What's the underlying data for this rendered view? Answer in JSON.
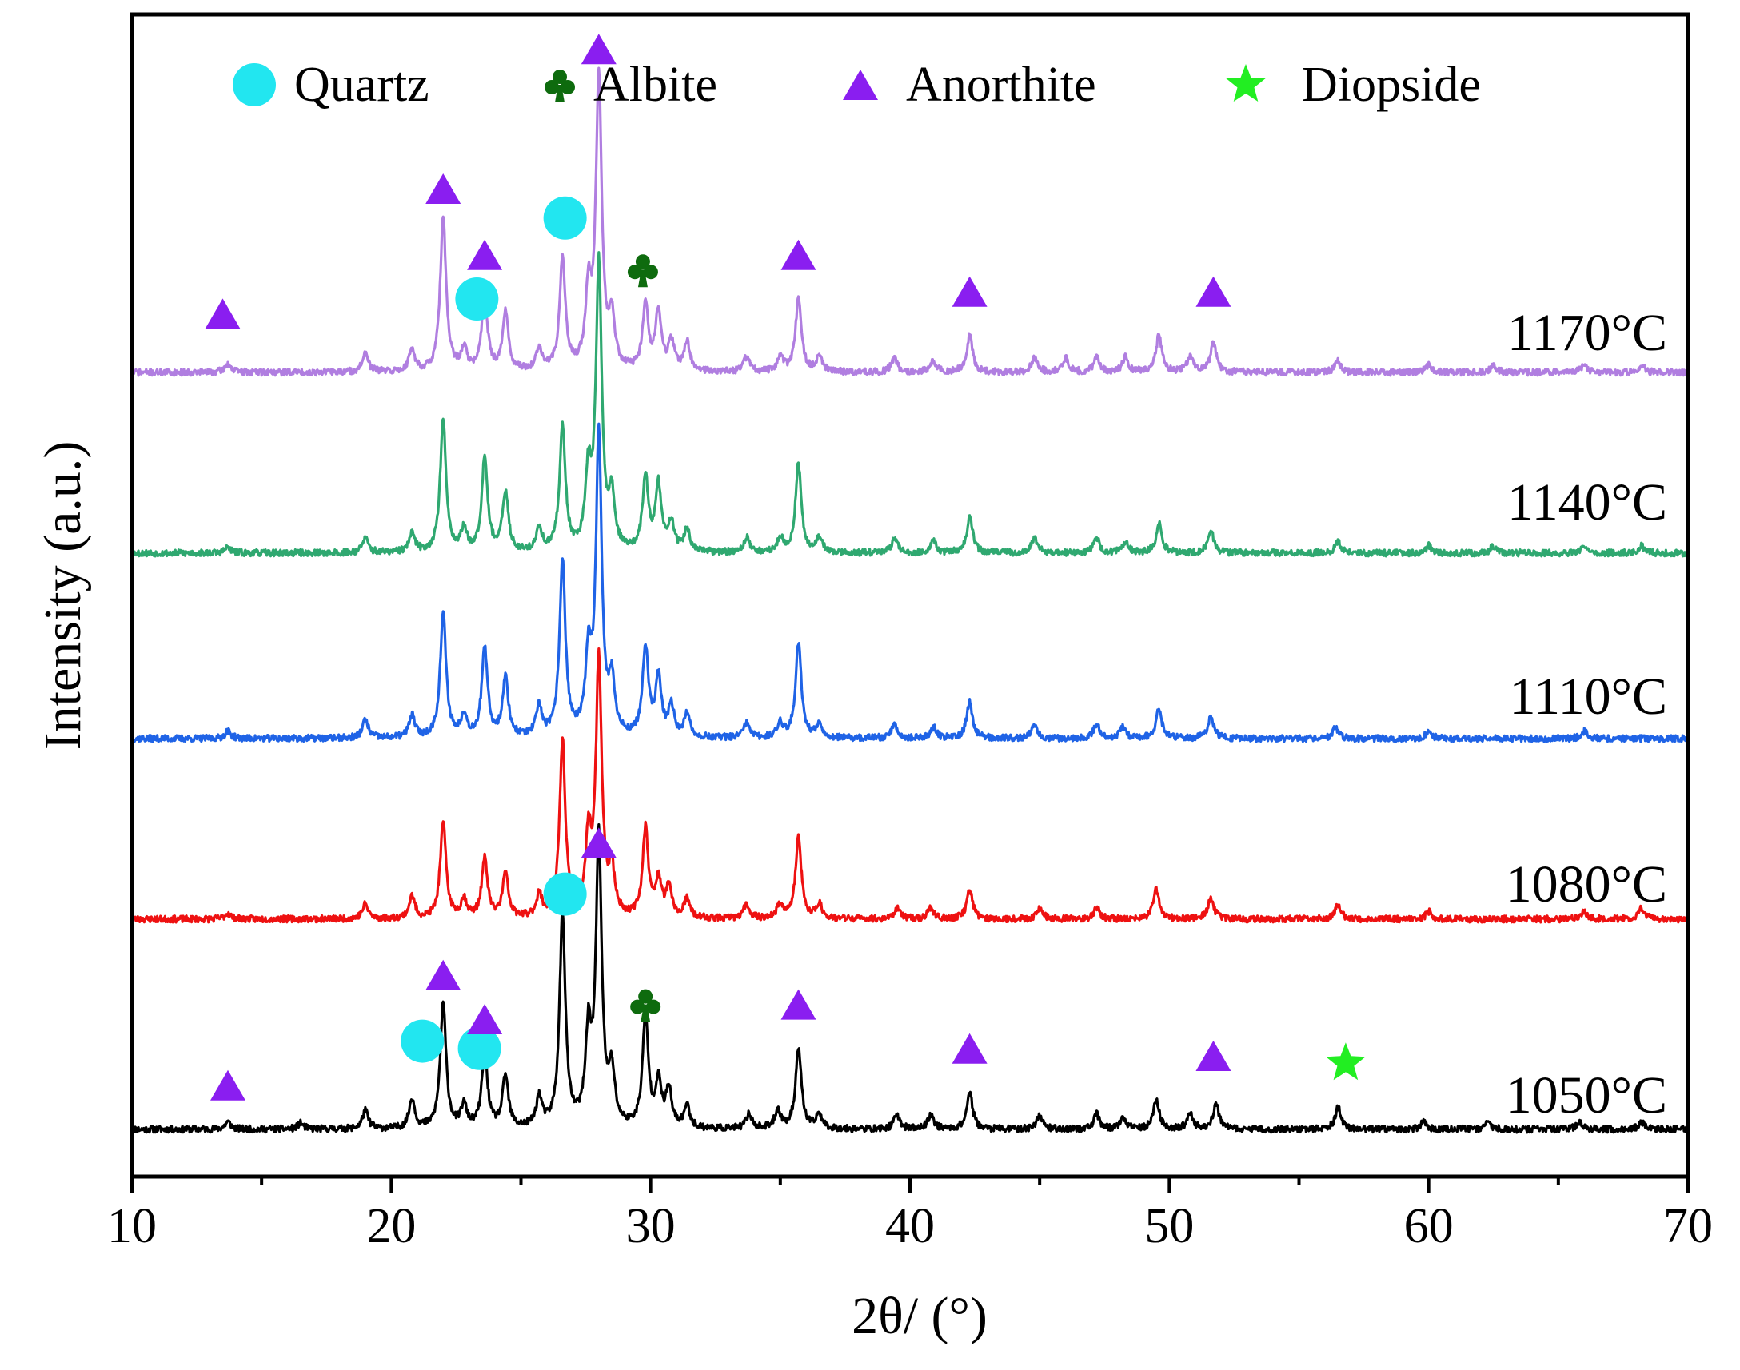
{
  "chart_data": {
    "type": "line",
    "title": "",
    "xlabel": "2θ/ (°)",
    "ylabel": "Intensity (a.u.)",
    "xlim": [
      10,
      70
    ],
    "x_ticks": [
      10,
      20,
      30,
      40,
      50,
      60,
      70
    ],
    "x_tick_labels": [
      "10",
      "20",
      "30",
      "40",
      "50",
      "60",
      "70"
    ],
    "y_ticks_shown": false,
    "legend": {
      "placement": "top",
      "entries": [
        {
          "label": "Quartz",
          "marker": "circle",
          "color": "#22e6f0"
        },
        {
          "label": "Albite",
          "marker": "club",
          "color": "#0e6b0e"
        },
        {
          "label": "Anorthite",
          "marker": "triangle",
          "color": "#8a1ef0"
        },
        {
          "label": "Diopside",
          "marker": "star",
          "color": "#22ee22"
        }
      ]
    },
    "series": [
      {
        "name": "1050°C",
        "color": "#000000",
        "baseline": 0,
        "noise_seed": 11,
        "peaks": [
          [
            13.7,
            1
          ],
          [
            16.5,
            0.8
          ],
          [
            19,
            2.5
          ],
          [
            20.8,
            4
          ],
          [
            22,
            17
          ],
          [
            22.8,
            3
          ],
          [
            23.6,
            10
          ],
          [
            24.4,
            7
          ],
          [
            25.7,
            4
          ],
          [
            26.6,
            29
          ],
          [
            27.6,
            12
          ],
          [
            28,
            39
          ],
          [
            28.5,
            7
          ],
          [
            29.8,
            15
          ],
          [
            30.3,
            6
          ],
          [
            30.7,
            5
          ],
          [
            31.4,
            3
          ],
          [
            33.8,
            2
          ],
          [
            34.9,
            2.5
          ],
          [
            35.7,
            11
          ],
          [
            36.5,
            2
          ],
          [
            39.5,
            2
          ],
          [
            40.8,
            2
          ],
          [
            42.3,
            5
          ],
          [
            45,
            2
          ],
          [
            47.2,
            2
          ],
          [
            48.2,
            1.5
          ],
          [
            49.5,
            4
          ],
          [
            50.8,
            2
          ],
          [
            51.8,
            3.5
          ],
          [
            56.5,
            3
          ],
          [
            59.8,
            1
          ],
          [
            62.3,
            1
          ],
          [
            65.8,
            1
          ],
          [
            68.2,
            1
          ]
        ]
      },
      {
        "name": "1080°C",
        "color": "#ee1111",
        "baseline": 0.58,
        "noise_seed": 23,
        "peaks": [
          [
            13.7,
            0.8
          ],
          [
            19,
            2
          ],
          [
            20.8,
            3
          ],
          [
            22,
            13
          ],
          [
            22.8,
            2.5
          ],
          [
            23.6,
            8
          ],
          [
            24.4,
            6
          ],
          [
            25.7,
            3
          ],
          [
            26.6,
            24
          ],
          [
            27.6,
            10
          ],
          [
            28,
            35
          ],
          [
            28.5,
            6
          ],
          [
            29.8,
            12
          ],
          [
            30.3,
            5
          ],
          [
            30.7,
            4
          ],
          [
            31.4,
            2.5
          ],
          [
            33.7,
            2
          ],
          [
            35,
            2
          ],
          [
            35.7,
            11
          ],
          [
            36.5,
            2
          ],
          [
            39.5,
            1.5
          ],
          [
            40.8,
            1.5
          ],
          [
            42.3,
            4
          ],
          [
            45,
            1.5
          ],
          [
            47.2,
            1.5
          ],
          [
            49.5,
            4
          ],
          [
            51.6,
            3
          ],
          [
            56.5,
            2
          ],
          [
            60,
            1
          ],
          [
            66,
            1
          ],
          [
            68.2,
            1.5
          ]
        ]
      },
      {
        "name": "1110°C",
        "color": "#1f63e6",
        "baseline": 1.22,
        "noise_seed": 37,
        "peaks": [
          [
            13.7,
            1
          ],
          [
            19,
            2.5
          ],
          [
            20.8,
            3
          ],
          [
            22,
            17
          ],
          [
            22.8,
            3
          ],
          [
            23.6,
            12
          ],
          [
            24.4,
            8
          ],
          [
            25.7,
            4
          ],
          [
            26.6,
            24
          ],
          [
            27.6,
            10
          ],
          [
            28,
            41
          ],
          [
            28.5,
            7
          ],
          [
            29.8,
            12
          ],
          [
            30.3,
            8
          ],
          [
            30.8,
            4
          ],
          [
            31.4,
            3
          ],
          [
            33.7,
            2
          ],
          [
            35,
            2
          ],
          [
            35.7,
            13
          ],
          [
            36.5,
            2
          ],
          [
            39.4,
            2
          ],
          [
            40.9,
            1.5
          ],
          [
            42.3,
            5
          ],
          [
            44.8,
            2
          ],
          [
            47.2,
            2
          ],
          [
            48.2,
            1.5
          ],
          [
            49.6,
            4
          ],
          [
            51.6,
            3
          ],
          [
            56.4,
            1.5
          ],
          [
            60,
            1
          ],
          [
            66,
            1
          ]
        ]
      },
      {
        "name": "1140°C",
        "color": "#2fa870",
        "baseline": 1.85,
        "noise_seed": 53,
        "peaks": [
          [
            13.7,
            0.8
          ],
          [
            19,
            2
          ],
          [
            20.8,
            2.5
          ],
          [
            22,
            18
          ],
          [
            22.8,
            3
          ],
          [
            23.6,
            13
          ],
          [
            24.4,
            8
          ],
          [
            25.7,
            3
          ],
          [
            26.6,
            17
          ],
          [
            27.6,
            10
          ],
          [
            28,
            39
          ],
          [
            28.5,
            7
          ],
          [
            29.8,
            10
          ],
          [
            30.3,
            9
          ],
          [
            30.8,
            4
          ],
          [
            31.4,
            3
          ],
          [
            33.7,
            2
          ],
          [
            35,
            2
          ],
          [
            35.7,
            12
          ],
          [
            36.5,
            2
          ],
          [
            39.4,
            2
          ],
          [
            40.9,
            1.5
          ],
          [
            42.3,
            5
          ],
          [
            44.8,
            2
          ],
          [
            47.2,
            2
          ],
          [
            48.3,
            1.5
          ],
          [
            49.6,
            4
          ],
          [
            51.6,
            3
          ],
          [
            56.5,
            1.5
          ],
          [
            60,
            1
          ],
          [
            62.5,
            1
          ],
          [
            66,
            1
          ],
          [
            68.2,
            1
          ]
        ]
      },
      {
        "name": "1170°C",
        "color": "#b07ee0",
        "baseline": 2.45,
        "noise_seed": 71,
        "peaks": [
          [
            13.7,
            1.2
          ],
          [
            19,
            2.5
          ],
          [
            20.8,
            3
          ],
          [
            22,
            21
          ],
          [
            22.8,
            3
          ],
          [
            23.6,
            10
          ],
          [
            24.4,
            8
          ],
          [
            25.7,
            3
          ],
          [
            26.6,
            15
          ],
          [
            27.6,
            10
          ],
          [
            28,
            40
          ],
          [
            28.5,
            7
          ],
          [
            29.8,
            9
          ],
          [
            30.3,
            8
          ],
          [
            30.8,
            4
          ],
          [
            31.4,
            4
          ],
          [
            33.7,
            2
          ],
          [
            35,
            2
          ],
          [
            35.7,
            10
          ],
          [
            36.5,
            2
          ],
          [
            39.4,
            2
          ],
          [
            40.9,
            1.5
          ],
          [
            42.3,
            5
          ],
          [
            44.8,
            2
          ],
          [
            46,
            2
          ],
          [
            47.2,
            2
          ],
          [
            48.3,
            2
          ],
          [
            49.6,
            5
          ],
          [
            50.8,
            2
          ],
          [
            51.7,
            4
          ],
          [
            56.5,
            1.5
          ],
          [
            60,
            1
          ],
          [
            62.5,
            1
          ],
          [
            66,
            1
          ],
          [
            68.2,
            1
          ]
        ]
      }
    ],
    "annotations": [
      {
        "series": "1050°C",
        "phase": "Anorthite",
        "marker": "triangle",
        "x": 13.7,
        "height": 6
      },
      {
        "series": "1050°C",
        "phase": "Quartz",
        "marker": "circle",
        "x": 21.2,
        "height": 12
      },
      {
        "series": "1050°C",
        "phase": "Anorthite",
        "marker": "triangle",
        "x": 22,
        "height": 21
      },
      {
        "series": "1050°C",
        "phase": "Quartz",
        "marker": "circle",
        "x": 23.4,
        "height": 11
      },
      {
        "series": "1050°C",
        "phase": "Anorthite",
        "marker": "triangle",
        "x": 23.6,
        "height": 15
      },
      {
        "series": "1050°C",
        "phase": "Quartz",
        "marker": "circle",
        "x": 26.7,
        "height": 32
      },
      {
        "series": "1050°C",
        "phase": "Anorthite",
        "marker": "triangle",
        "x": 28,
        "height": 39
      },
      {
        "series": "1050°C",
        "phase": "Albite",
        "marker": "club",
        "x": 29.8,
        "height": 17
      },
      {
        "series": "1050°C",
        "phase": "Anorthite",
        "marker": "triangle",
        "x": 35.7,
        "height": 17
      },
      {
        "series": "1050°C",
        "phase": "Anorthite",
        "marker": "triangle",
        "x": 42.3,
        "height": 11
      },
      {
        "series": "1050°C",
        "phase": "Anorthite",
        "marker": "triangle",
        "x": 51.7,
        "height": 10
      },
      {
        "series": "1050°C",
        "phase": "Diopside",
        "marker": "star",
        "x": 56.8,
        "height": 9
      },
      {
        "series": "1170°C",
        "phase": "Anorthite",
        "marker": "triangle",
        "x": 13.5,
        "height": 8
      },
      {
        "series": "1170°C",
        "phase": "Anorthite",
        "marker": "triangle",
        "x": 22,
        "height": 25
      },
      {
        "series": "1170°C",
        "phase": "Quartz",
        "marker": "circle",
        "x": 23.3,
        "height": 10
      },
      {
        "series": "1170°C",
        "phase": "Anorthite",
        "marker": "triangle",
        "x": 23.6,
        "height": 16
      },
      {
        "series": "1170°C",
        "phase": "Quartz",
        "marker": "circle",
        "x": 26.7,
        "height": 21
      },
      {
        "series": "1170°C",
        "phase": "Anorthite",
        "marker": "triangle",
        "x": 28,
        "height": 44
      },
      {
        "series": "1170°C",
        "phase": "Albite",
        "marker": "club",
        "x": 29.7,
        "height": 14
      },
      {
        "series": "1170°C",
        "phase": "Anorthite",
        "marker": "triangle",
        "x": 35.7,
        "height": 16
      },
      {
        "series": "1170°C",
        "phase": "Anorthite",
        "marker": "triangle",
        "x": 42.3,
        "height": 11
      },
      {
        "series": "1170°C",
        "phase": "Anorthite",
        "marker": "triangle",
        "x": 51.7,
        "height": 11
      }
    ]
  }
}
